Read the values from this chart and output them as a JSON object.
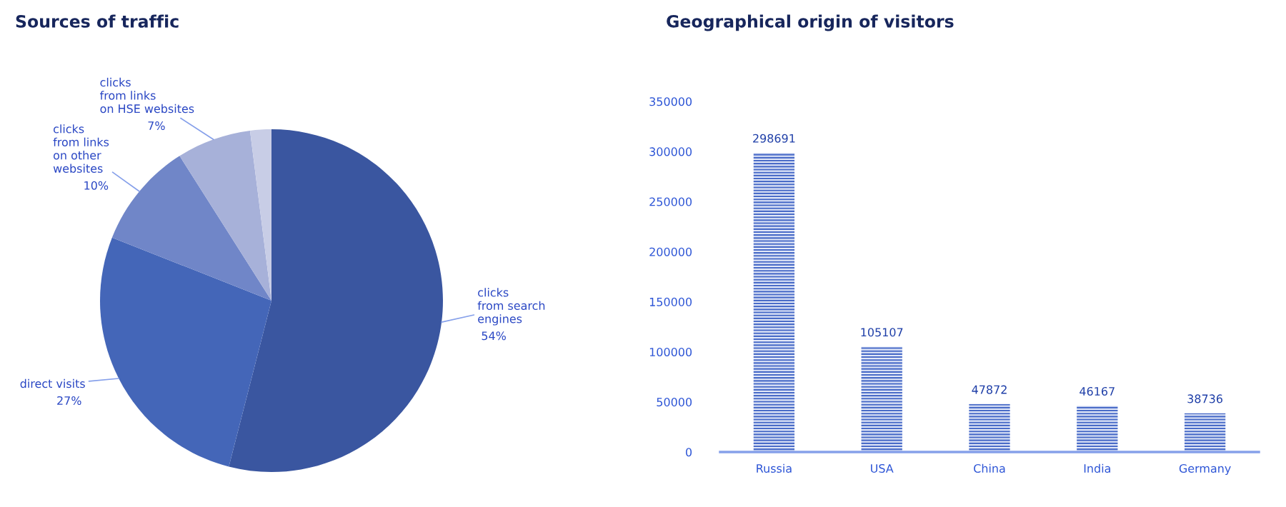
{
  "chart_data": [
    {
      "type": "pie",
      "title": "Sources of traffic",
      "categories": [
        "clicks\nfrom search\nengines",
        "direct visits",
        "clicks\nfrom links\non other\nwebsites",
        "clicks\nfrom links\non HSE websites",
        null
      ],
      "values": [
        54,
        27,
        10,
        7,
        2
      ],
      "colors": [
        "#3a56a0",
        "#4466b8",
        "#7086c8",
        "#a7b1d9",
        "#c8cde6"
      ],
      "value_labels": [
        "54%",
        "27%",
        "10%",
        "7%",
        null
      ]
    },
    {
      "type": "bar",
      "title": "Geographical origin of visitors",
      "categories": [
        "Russia",
        "USA",
        "China",
        "India",
        "Germany"
      ],
      "values": [
        298691,
        105107,
        47872,
        46167,
        38736
      ],
      "color": "#4a6cc8",
      "ylim": [
        0,
        350000
      ],
      "yticks": [
        0,
        50000,
        100000,
        150000,
        200000,
        250000,
        300000,
        350000
      ],
      "data_labels": true
    }
  ]
}
